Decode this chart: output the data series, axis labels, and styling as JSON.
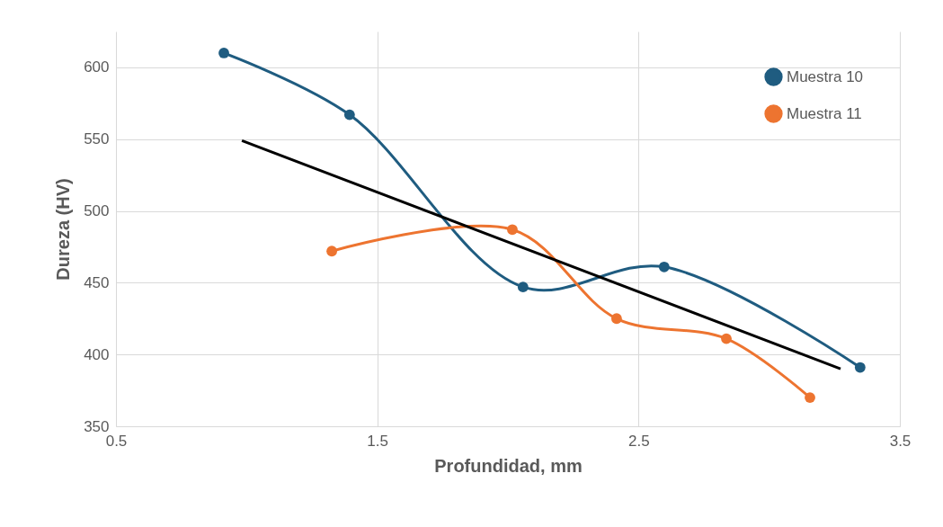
{
  "chart_data": {
    "type": "line",
    "xlabel": "Profundidad, mm",
    "ylabel": "Dureza (HV)",
    "xlim": [
      0.5,
      3.5
    ],
    "xticks": [
      0.5,
      1.5,
      2.5,
      3.5
    ],
    "ylim": [
      350,
      625
    ],
    "yticks": [
      350,
      400,
      450,
      500,
      550,
      600
    ],
    "grid": true,
    "legend": "top right",
    "marker": "circle",
    "series": [
      {
        "name": "Muestra 10",
        "color": "#1f5c80",
        "x": [
          0.913,
          1.394,
          2.058,
          2.598,
          3.348
        ],
        "values": [
          610,
          567,
          447,
          461,
          391
        ]
      },
      {
        "name": "Muestra 11",
        "color": "#ed7430",
        "x": [
          1.326,
          2.017,
          2.416,
          2.836,
          3.156
        ],
        "values": [
          472,
          487,
          425,
          411,
          370
        ]
      },
      {
        "type": "line",
        "marker": "none",
        "color": "#000000",
        "x": [
          0.982,
          3.273
        ],
        "values": [
          549,
          390
        ]
      }
    ]
  }
}
